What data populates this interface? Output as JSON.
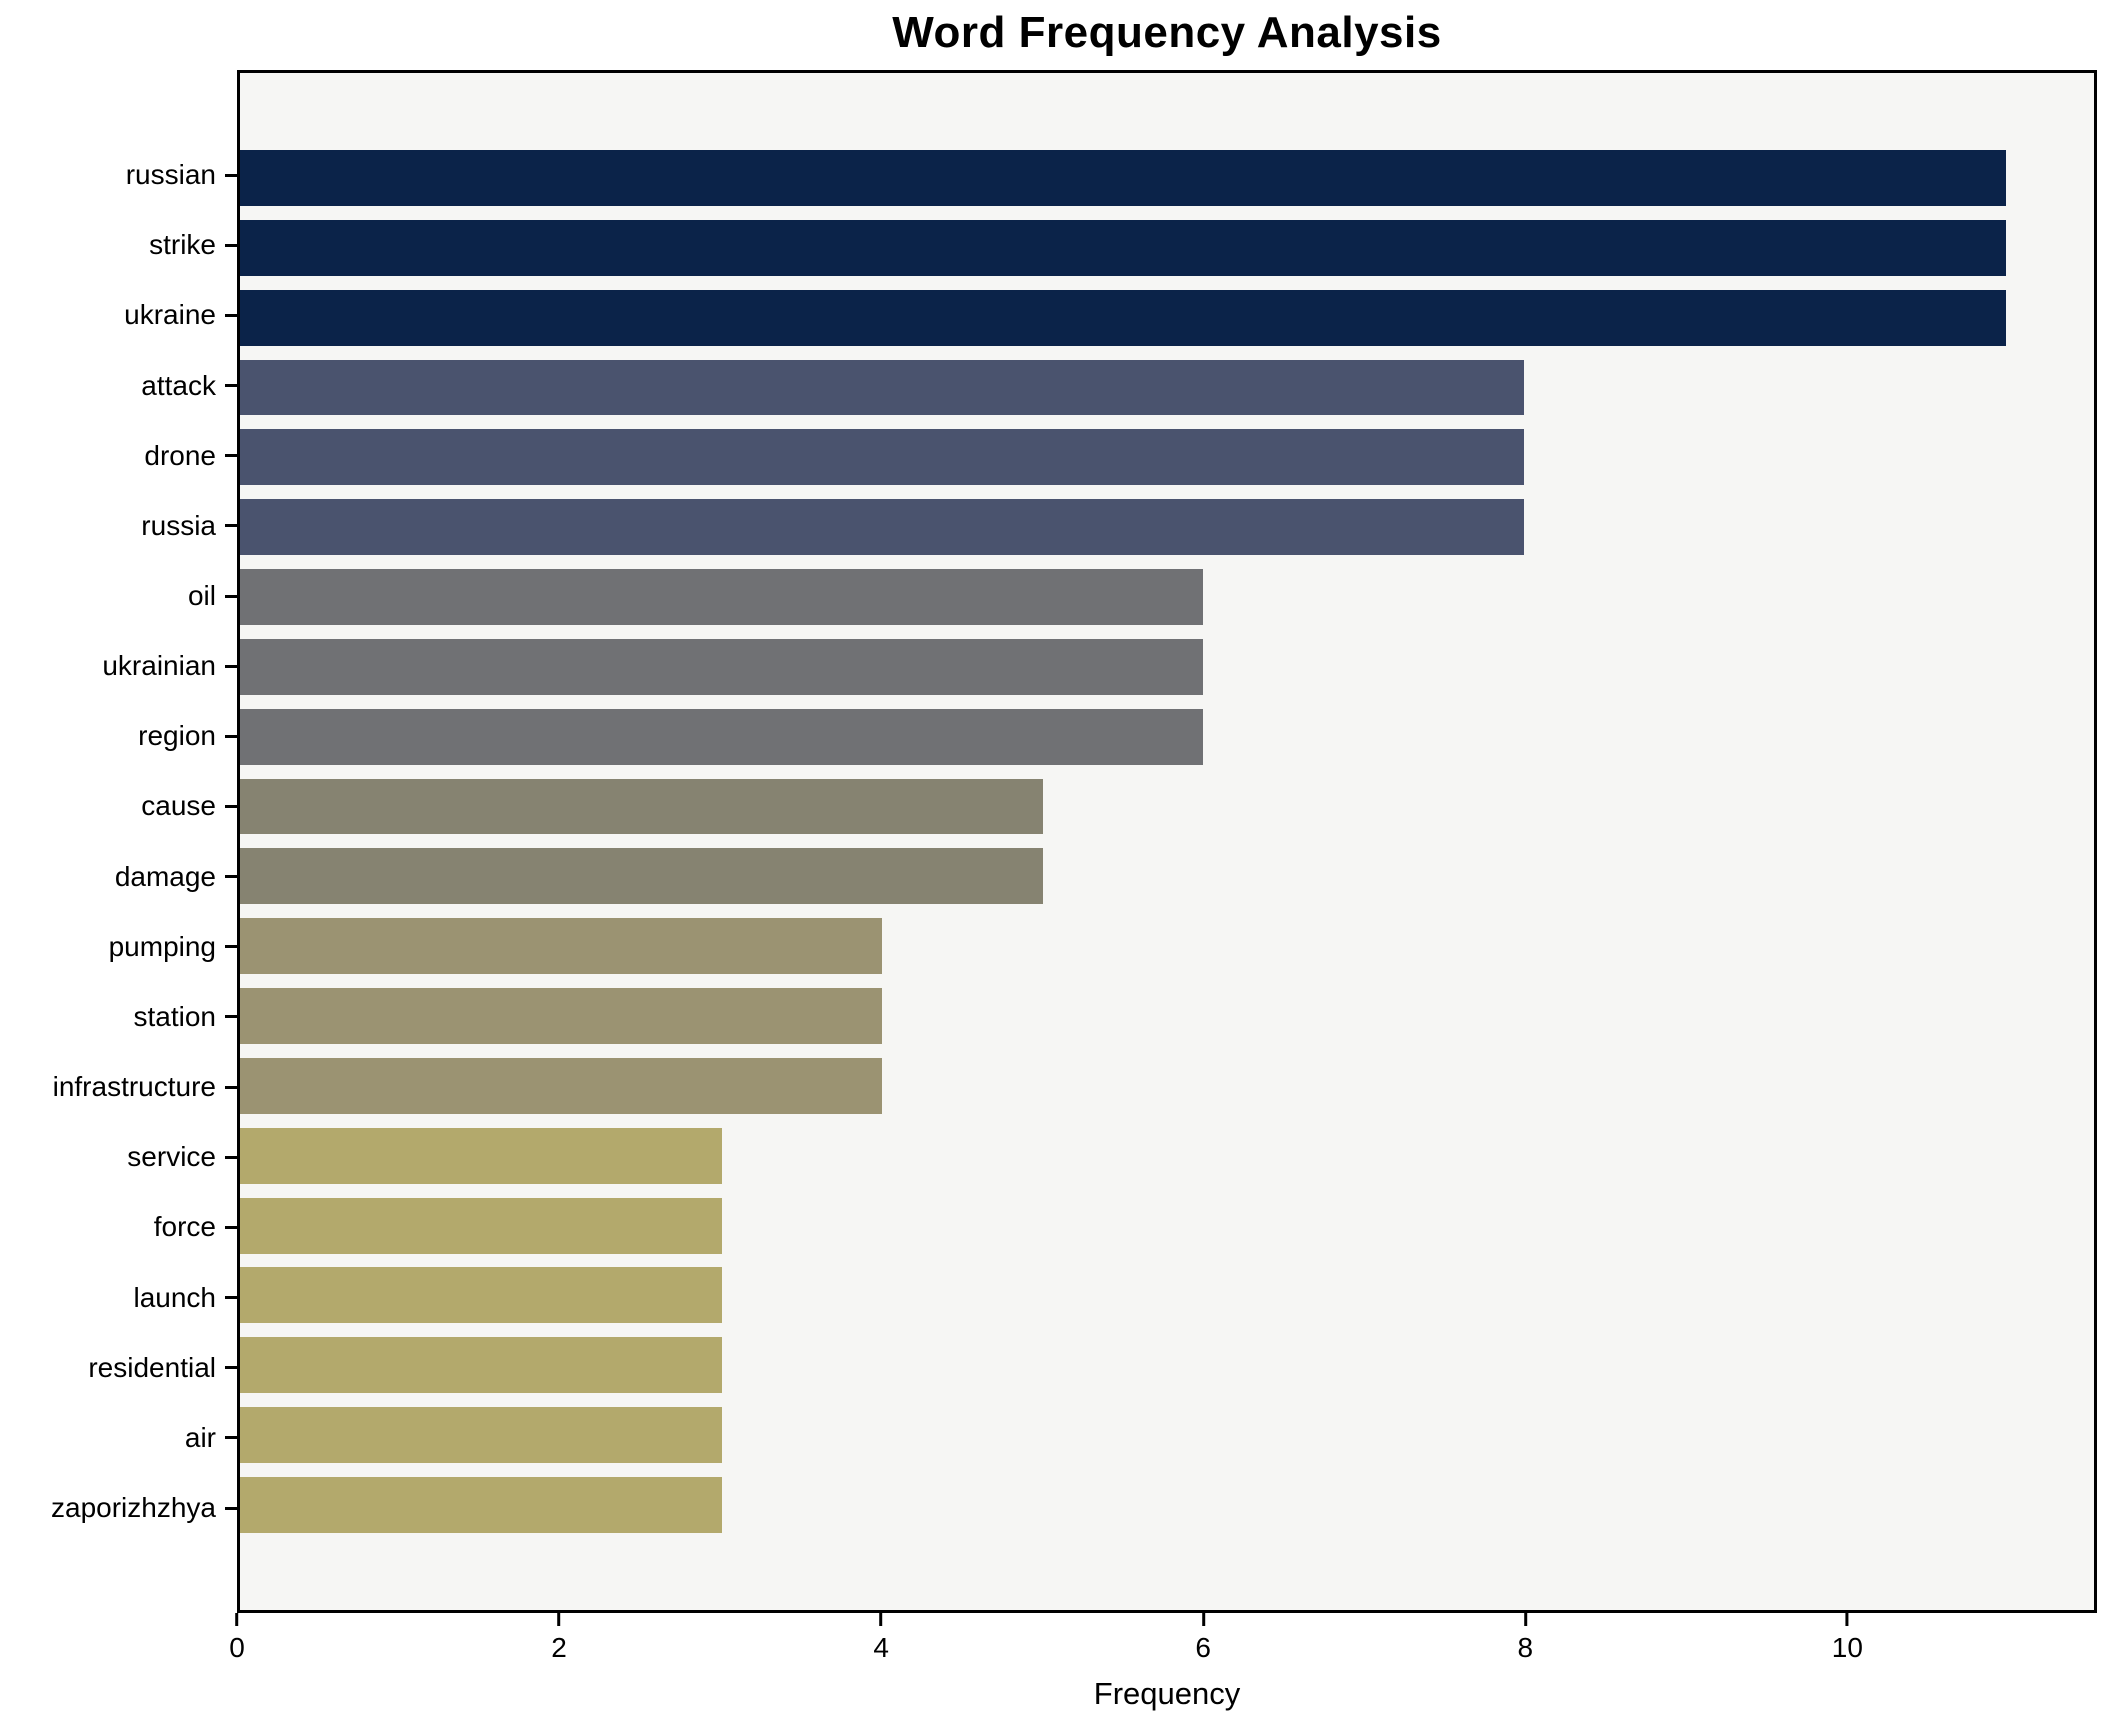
{
  "title": "Word Frequency Analysis",
  "x_axis_label": "Frequency",
  "chart_data": {
    "type": "bar",
    "orientation": "horizontal",
    "title": "Word Frequency Analysis",
    "xlabel": "Frequency",
    "ylabel": "",
    "categories": [
      "russian",
      "strike",
      "ukraine",
      "attack",
      "drone",
      "russia",
      "oil",
      "ukrainian",
      "region",
      "cause",
      "damage",
      "pumping",
      "station",
      "infrastructure",
      "service",
      "force",
      "launch",
      "residential",
      "air",
      "zaporizhzhya"
    ],
    "values": [
      11,
      11,
      11,
      8,
      8,
      8,
      6,
      6,
      6,
      5,
      5,
      4,
      4,
      4,
      3,
      3,
      3,
      3,
      3,
      3
    ],
    "bar_colors": [
      "#0b2349",
      "#0b2349",
      "#0b2349",
      "#4a536e",
      "#4a536e",
      "#4a536e",
      "#707174",
      "#707174",
      "#707174",
      "#868371",
      "#868371",
      "#9b9372",
      "#9b9372",
      "#9b9372",
      "#b3a96c",
      "#b3a96c",
      "#b3a96c",
      "#b3a96c",
      "#b3a96c",
      "#b3a96c"
    ],
    "xlim": [
      0,
      11.55
    ],
    "x_ticks": [
      0,
      2,
      4,
      6,
      8,
      10
    ],
    "grid": false,
    "legend_position": "none",
    "plot_background": "#f6f6f4",
    "figure_background": "#ffffff",
    "spine_color": "#000000"
  }
}
